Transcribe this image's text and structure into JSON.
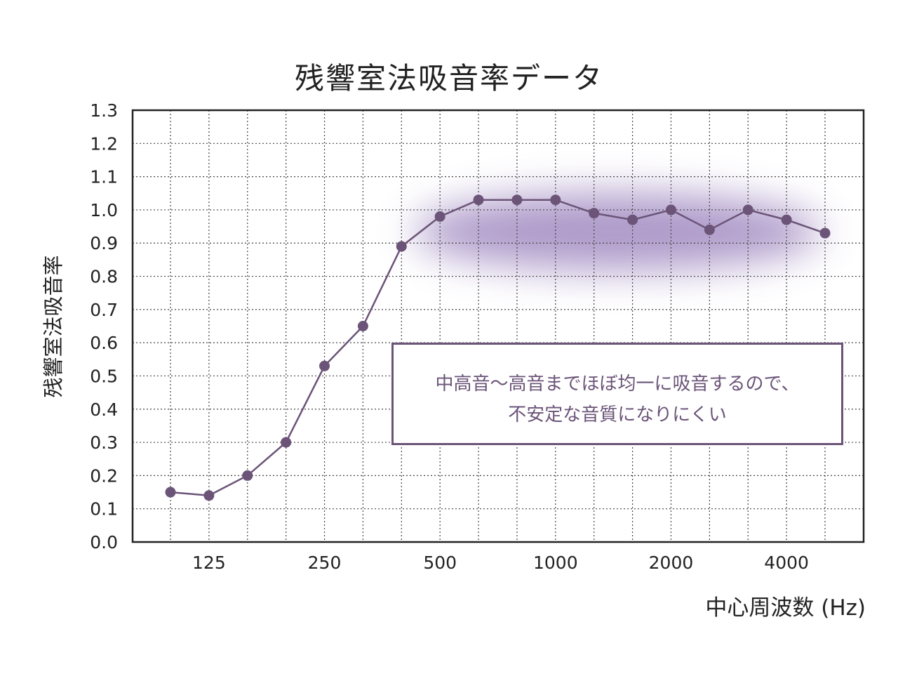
{
  "chart_data": {
    "type": "line",
    "title": "残響室法吸音率データ",
    "xlabel": "中心周波数 (Hz)",
    "ylabel": "残響室法吸音率",
    "x": [
      100,
      125,
      160,
      200,
      250,
      315,
      400,
      500,
      630,
      800,
      1000,
      1250,
      1600,
      2000,
      2500,
      3150,
      4000,
      5000
    ],
    "x_tick_labels": [
      {
        "freq": 125,
        "label": "125"
      },
      {
        "freq": 250,
        "label": "250"
      },
      {
        "freq": 500,
        "label": "500"
      },
      {
        "freq": 1000,
        "label": "1000"
      },
      {
        "freq": 2000,
        "label": "2000"
      },
      {
        "freq": 4000,
        "label": "4000"
      }
    ],
    "series": [
      {
        "name": "吸音率",
        "values": [
          0.15,
          0.14,
          0.2,
          0.3,
          0.53,
          0.65,
          0.89,
          0.98,
          1.03,
          1.03,
          1.03,
          0.99,
          0.97,
          1.0,
          0.94,
          1.0,
          0.97,
          0.93
        ]
      }
    ],
    "ylim": [
      0,
      1.3
    ],
    "y_ticks": [
      "0.0",
      "0.1",
      "0.2",
      "0.3",
      "0.4",
      "0.5",
      "0.6",
      "0.7",
      "0.8",
      "0.9",
      "1.0",
      "1.1",
      "1.2",
      "1.3"
    ],
    "grid": true,
    "line_color": "#6b5478",
    "highlight_color": "#a690c4",
    "annotation": {
      "line1": "中高音〜高音までほぼ均一に吸音するので、",
      "line2": "不安定な音質になりにくい"
    }
  }
}
